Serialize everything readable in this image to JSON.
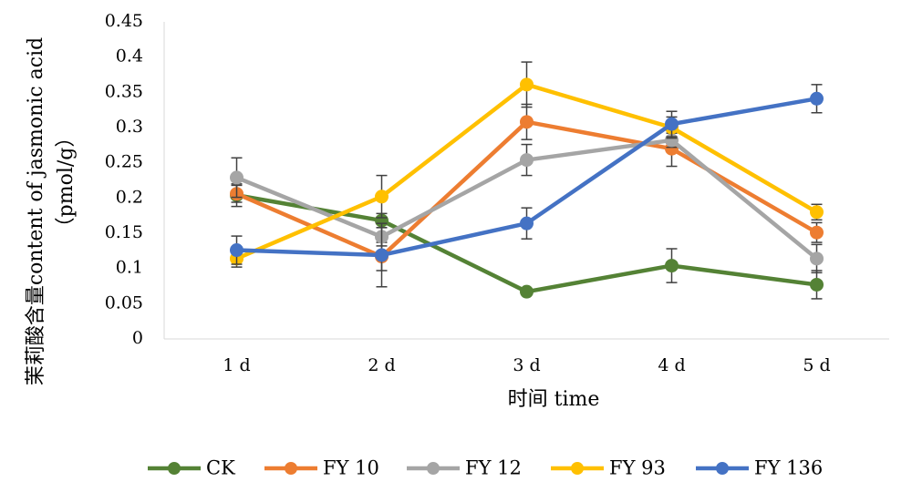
{
  "chart_data": {
    "type": "line",
    "title": "",
    "xlabel": "时间 time",
    "ylabel": "茉莉酸含量content of jasmonic acid",
    "ylabel_unit": "（pmol/g）",
    "categories": [
      "1 d",
      "2 d",
      "3 d",
      "4 d",
      "5 d"
    ],
    "yticks": [
      "0",
      "0.05",
      "0.1",
      "0.15",
      "0.2",
      "0.25",
      "0.3",
      "0.35",
      "0.4",
      "0.45"
    ],
    "ylim": [
      0,
      0.45
    ],
    "grid": false,
    "legend_position": "bottom",
    "series": [
      {
        "name": "CK",
        "color": "#548235",
        "values": [
          0.204,
          0.168,
          0.067,
          0.104,
          0.077
        ],
        "errors": [
          0.016,
          0.01,
          0.004,
          0.024,
          0.02
        ]
      },
      {
        "name": "FY 10",
        "color": "#ED7D31",
        "values": [
          0.206,
          0.117,
          0.308,
          0.27,
          0.151
        ],
        "errors": [
          0.012,
          0.02,
          0.025,
          0.025,
          0.014
        ]
      },
      {
        "name": "FY 12",
        "color": "#A5A5A5",
        "values": [
          0.229,
          0.145,
          0.254,
          0.282,
          0.114
        ],
        "errors": [
          0.028,
          0.013,
          0.022,
          0.01,
          0.02
        ]
      },
      {
        "name": "FY 93",
        "color": "#FFC000",
        "values": [
          0.114,
          0.202,
          0.361,
          0.3,
          0.18
        ],
        "errors": [
          0.012,
          0.03,
          0.032,
          0.015,
          0.011
        ]
      },
      {
        "name": "FY 136",
        "color": "#4472C4",
        "values": [
          0.126,
          0.119,
          0.164,
          0.305,
          0.341
        ],
        "errors": [
          0.02,
          0.045,
          0.022,
          0.018,
          0.02
        ]
      }
    ]
  }
}
